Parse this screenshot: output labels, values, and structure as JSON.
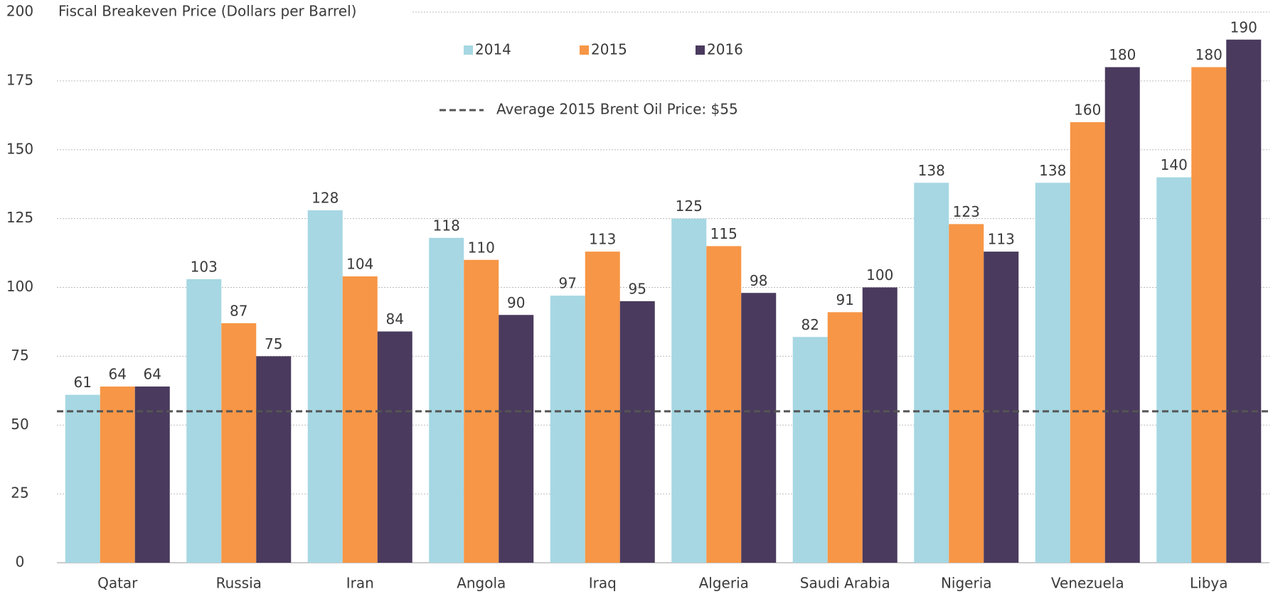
{
  "chart_data": {
    "type": "bar",
    "ylabel": "Fiscal Breakeven Price (Dollars per Barrel)",
    "categories": [
      "Qatar",
      "Russia",
      "Iran",
      "Angola",
      "Iraq",
      "Algeria",
      "Saudi Arabia",
      "Nigeria",
      "Venezuela",
      "Libya"
    ],
    "series": [
      {
        "name": "2014",
        "color": "#a6d7e3",
        "values": [
          61,
          103,
          128,
          118,
          97,
          125,
          82,
          138,
          138,
          140
        ]
      },
      {
        "name": "2015",
        "color": "#f79646",
        "values": [
          64,
          87,
          104,
          110,
          113,
          115,
          91,
          123,
          160,
          180
        ]
      },
      {
        "name": "2016",
        "color": "#4a3a5e",
        "values": [
          64,
          75,
          84,
          90,
          95,
          98,
          100,
          113,
          180,
          190
        ]
      }
    ],
    "reference_line": {
      "label": "Average 2015 Brent Oil Price: $55",
      "value": 55,
      "color": "#555555"
    },
    "ylim": [
      0,
      200
    ],
    "yticks": [
      0,
      25,
      50,
      75,
      100,
      125,
      150,
      175,
      200
    ],
    "grid": true
  }
}
